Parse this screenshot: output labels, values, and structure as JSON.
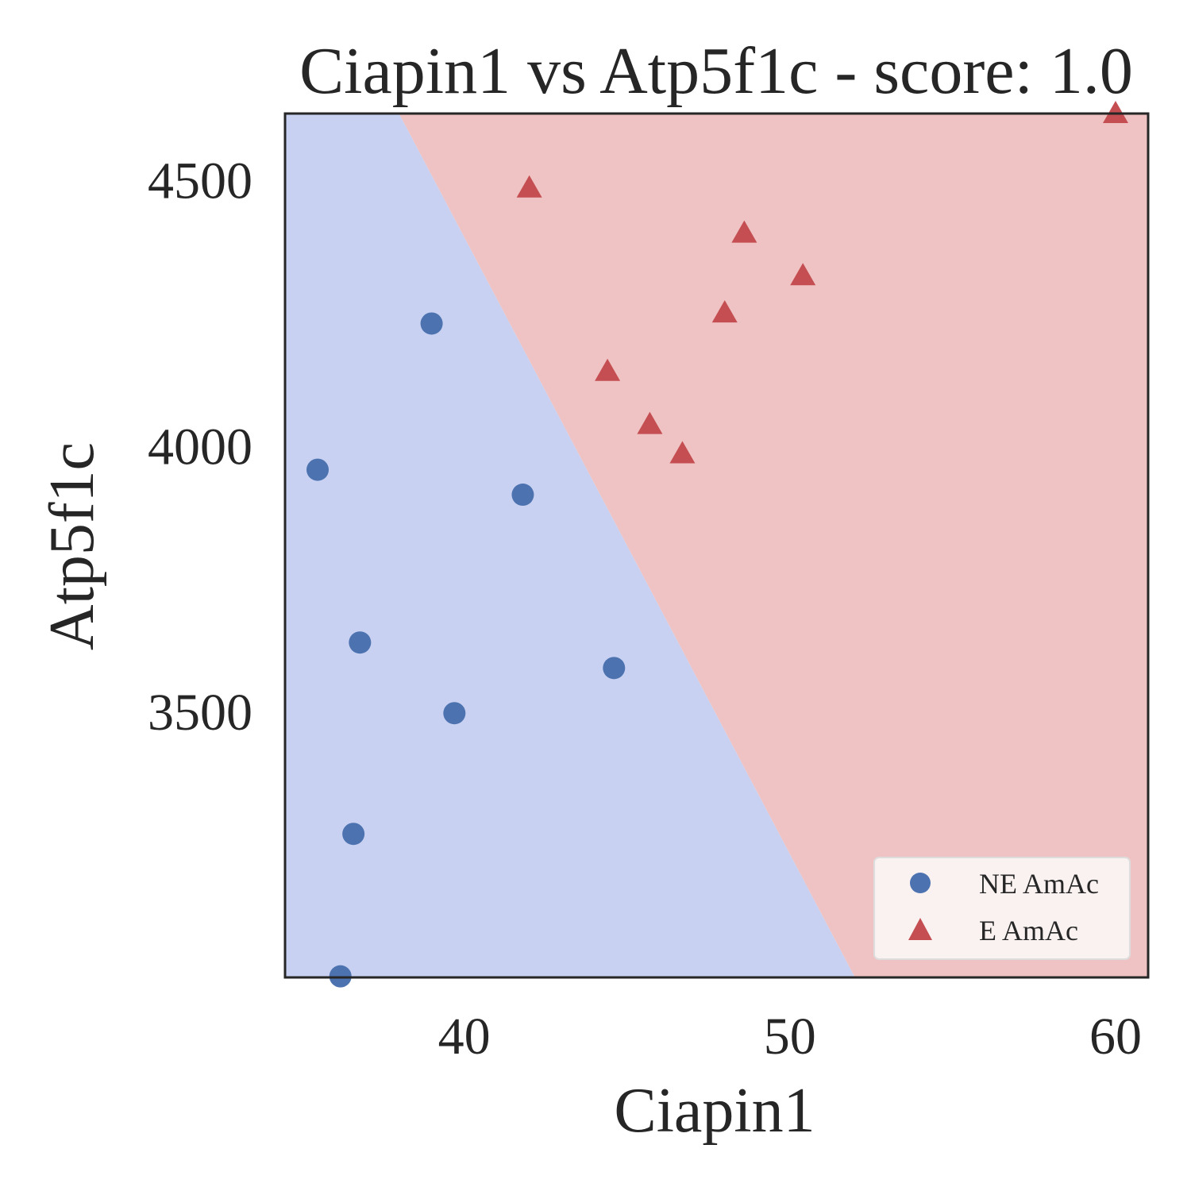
{
  "chart_data": {
    "type": "scatter",
    "title": "Ciapin1 vs Atp5f1c - score: 1.0",
    "xlabel": "Ciapin1",
    "ylabel": "Atp5f1c",
    "xlim": [
      34.5,
      61.0
    ],
    "ylim": [
      3000,
      4625
    ],
    "xticks": [
      40,
      50,
      60
    ],
    "yticks": [
      3500,
      4000,
      4500
    ],
    "grid": false,
    "legend_position": "lower-right",
    "regions": [
      {
        "label": "NE AmAc",
        "color": "#c8d1f1"
      },
      {
        "label": "E AmAc",
        "color": "#efc3c3"
      }
    ],
    "boundary": {
      "x": [
        38.0,
        52.0
      ],
      "y": [
        4625,
        3000
      ]
    },
    "series": [
      {
        "name": "NE AmAc",
        "marker": "circle",
        "color": "#4c72b0",
        "x": [
          35.5,
          39.0,
          41.8,
          36.8,
          44.6,
          39.7,
          36.6,
          36.2
        ],
        "y": [
          3955,
          4230,
          3908,
          3630,
          3582,
          3497,
          3270,
          3002
        ]
      },
      {
        "name": "E AmAc",
        "marker": "triangle",
        "color": "#c44e52",
        "x": [
          42.0,
          48.6,
          50.4,
          48.0,
          44.4,
          45.7,
          46.7,
          60.0
        ],
        "y": [
          4485,
          4400,
          4320,
          4250,
          4140,
          4040,
          3985,
          4625
        ]
      }
    ]
  }
}
